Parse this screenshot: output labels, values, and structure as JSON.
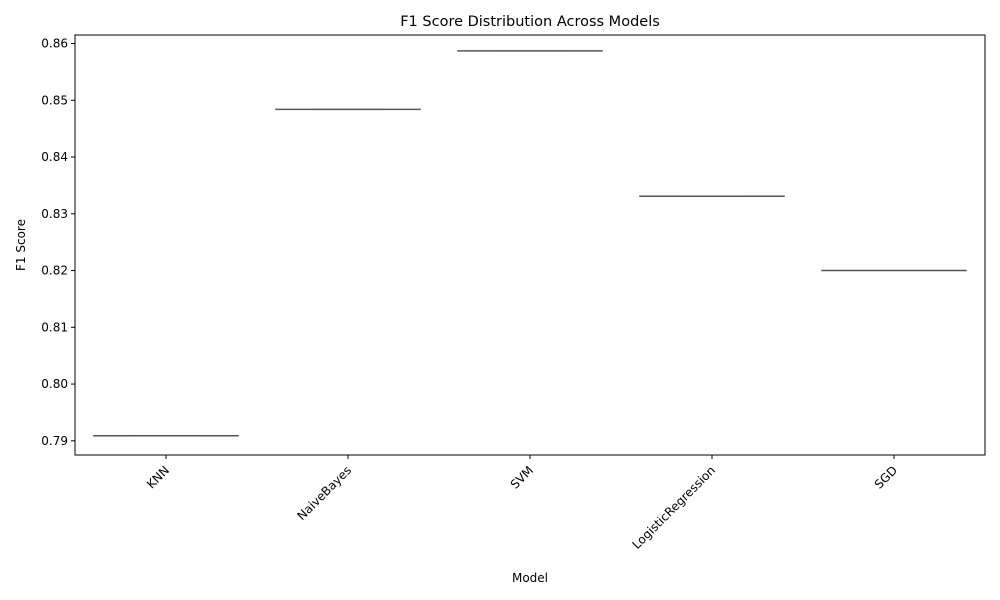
{
  "chart_data": {
    "type": "box",
    "title": "F1 Score Distribution Across Models",
    "xlabel": "Model",
    "ylabel": "F1 Score",
    "categories": [
      "KNN",
      "NaiveBayes",
      "SVM",
      "LogisticRegression",
      "SGD"
    ],
    "values": [
      0.7909,
      0.8484,
      0.8587,
      0.8331,
      0.82
    ],
    "ylim": [
      0.7875,
      0.8615
    ],
    "yticks": [
      0.79,
      0.8,
      0.81,
      0.82,
      0.83,
      0.84,
      0.85,
      0.86
    ],
    "ytick_labels": [
      "0.79",
      "0.80",
      "0.81",
      "0.82",
      "0.83",
      "0.84",
      "0.85",
      "0.86"
    ],
    "xtick_rotation_deg": 45,
    "grid": false,
    "colors": {
      "box_line": "#555555",
      "axes": "#000000"
    }
  }
}
